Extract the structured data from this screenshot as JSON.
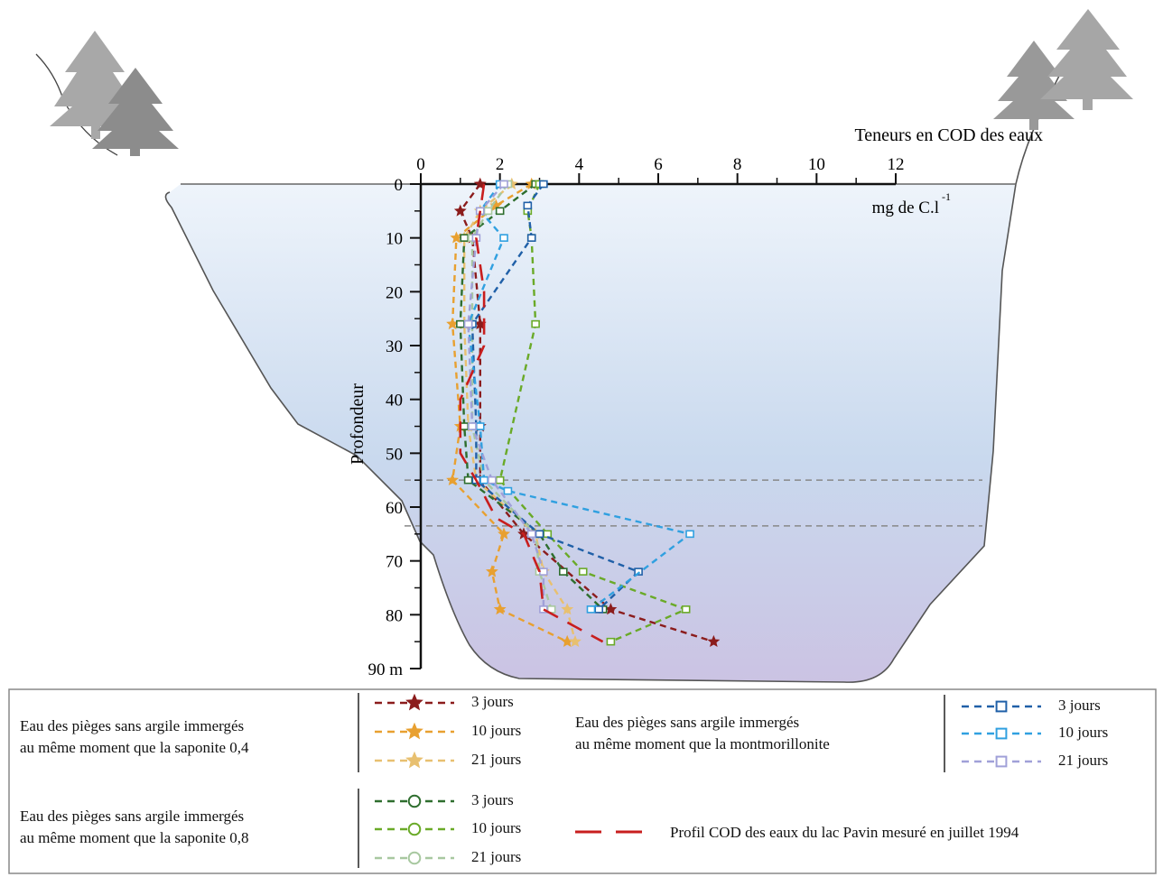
{
  "chart_data": {
    "type": "line",
    "title": "Teneurs en COD des eaux",
    "xlabel": "mg de C.l",
    "xlabel_superscript": "-1",
    "ylabel": "Profondeur",
    "xlim": [
      0,
      12
    ],
    "ylim": [
      0,
      90
    ],
    "x_ticks": [
      "0",
      "2",
      "4",
      "6",
      "8",
      "10",
      "12"
    ],
    "y_ticks": [
      "0",
      "10",
      "20",
      "30",
      "40",
      "50",
      "60",
      "70",
      "80",
      "90 m"
    ],
    "reference_lines_depth": [
      55,
      63.5
    ],
    "series": [
      {
        "name": "3 jours",
        "group": "saponite_04",
        "color": "#8b1c1c",
        "marker": "star",
        "points": [
          [
            1.5,
            0
          ],
          [
            1.0,
            5
          ],
          [
            1.3,
            10
          ],
          [
            1.5,
            26
          ],
          [
            1.5,
            45
          ],
          [
            1.5,
            55
          ],
          [
            2.6,
            65
          ],
          [
            4.8,
            79
          ],
          [
            7.4,
            85
          ]
        ]
      },
      {
        "name": "10 jours",
        "group": "saponite_04",
        "color": "#e8a030",
        "marker": "star",
        "points": [
          [
            2.8,
            0
          ],
          [
            1.9,
            4
          ],
          [
            0.9,
            10
          ],
          [
            0.8,
            26
          ],
          [
            1.0,
            45
          ],
          [
            0.8,
            55
          ],
          [
            2.1,
            65
          ],
          [
            1.8,
            72
          ],
          [
            2.0,
            79
          ],
          [
            3.7,
            85
          ]
        ]
      },
      {
        "name": "21 jours",
        "group": "saponite_04",
        "color": "#e8c070",
        "marker": "star",
        "points": [
          [
            2.3,
            0
          ],
          [
            1.5,
            5
          ],
          [
            1.1,
            10
          ],
          [
            1.1,
            26
          ],
          [
            1.2,
            45
          ],
          [
            1.4,
            55
          ],
          [
            2.9,
            65
          ],
          [
            3.1,
            72
          ],
          [
            3.7,
            79
          ],
          [
            3.9,
            85
          ]
        ]
      },
      {
        "name": "3 jours",
        "group": "saponite_08",
        "color": "#2e6e2e",
        "marker": "circle",
        "points": [
          [
            2.9,
            0
          ],
          [
            2.0,
            5
          ],
          [
            1.1,
            10
          ],
          [
            1.0,
            26
          ],
          [
            1.1,
            45
          ],
          [
            1.2,
            55
          ],
          [
            3.0,
            65
          ],
          [
            3.6,
            72
          ],
          [
            4.6,
            79
          ]
        ]
      },
      {
        "name": "10 jours",
        "group": "saponite_08",
        "color": "#6aaa28",
        "marker": "circle",
        "points": [
          [
            3.0,
            0
          ],
          [
            2.7,
            5
          ],
          [
            2.8,
            10
          ],
          [
            2.9,
            26
          ],
          [
            2.0,
            55
          ],
          [
            3.2,
            65
          ],
          [
            4.1,
            72
          ],
          [
            6.7,
            79
          ],
          [
            4.8,
            85
          ]
        ]
      },
      {
        "name": "21 jours",
        "group": "saponite_08",
        "color": "#a8c8a0",
        "marker": "circle",
        "points": [
          [
            2.2,
            0
          ],
          [
            1.7,
            5
          ],
          [
            1.3,
            10
          ],
          [
            1.3,
            26
          ],
          [
            1.3,
            45
          ],
          [
            1.6,
            55
          ],
          [
            2.9,
            65
          ],
          [
            3.0,
            72
          ],
          [
            3.3,
            79
          ]
        ]
      },
      {
        "name": "3 jours",
        "group": "montmorillonite",
        "color": "#2060a8",
        "marker": "square",
        "points": [
          [
            3.1,
            0
          ],
          [
            2.7,
            4
          ],
          [
            2.8,
            10
          ],
          [
            1.3,
            26
          ],
          [
            1.4,
            45
          ],
          [
            1.4,
            55
          ],
          [
            3.0,
            65
          ],
          [
            5.5,
            72
          ],
          [
            4.5,
            79
          ]
        ]
      },
      {
        "name": "10 jours",
        "group": "montmorillonite",
        "color": "#30a0e0",
        "marker": "square",
        "points": [
          [
            2.0,
            0
          ],
          [
            1.5,
            5
          ],
          [
            2.1,
            10
          ],
          [
            1.2,
            26
          ],
          [
            1.5,
            45
          ],
          [
            1.6,
            55
          ],
          [
            2.2,
            57
          ],
          [
            6.8,
            65
          ],
          [
            4.3,
            79
          ]
        ]
      },
      {
        "name": "21 jours",
        "group": "montmorillonite",
        "color": "#a0a0d8",
        "marker": "square",
        "points": [
          [
            2.1,
            0
          ],
          [
            1.5,
            5
          ],
          [
            1.4,
            10
          ],
          [
            1.2,
            26
          ],
          [
            1.3,
            45
          ],
          [
            1.8,
            55
          ],
          [
            2.8,
            65
          ],
          [
            3.1,
            72
          ],
          [
            3.1,
            79
          ]
        ]
      },
      {
        "name": "Profil COD des eaux du lac Pavin mesuré en juillet 1994",
        "group": "pavin",
        "color": "#c81e1e",
        "marker": "none",
        "points": [
          [
            1.6,
            0
          ],
          [
            1.5,
            5
          ],
          [
            1.4,
            10
          ],
          [
            1.6,
            20
          ],
          [
            1.6,
            30
          ],
          [
            1.0,
            40
          ],
          [
            1.0,
            50
          ],
          [
            1.4,
            55
          ],
          [
            1.9,
            62
          ],
          [
            2.6,
            65
          ],
          [
            3.0,
            72
          ],
          [
            3.1,
            79
          ],
          [
            4.6,
            85
          ]
        ]
      }
    ]
  },
  "legend": {
    "saponite_04_text": [
      "Eau des pièges sans argile immergés",
      "au même moment que la saponite 0,4"
    ],
    "saponite_08_text": [
      "Eau des pièges sans argile immergés",
      "au même moment que la saponite 0,8"
    ],
    "montmorillonite_text": [
      "Eau des pièges sans argile immergés",
      "au même moment que la montmorillonite"
    ],
    "pavin_text": "Profil COD des eaux du lac Pavin mesuré en juillet 1994"
  }
}
